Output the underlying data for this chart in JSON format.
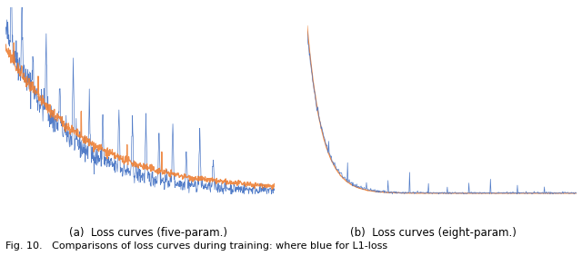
{
  "title_a": "(a)  Loss curves (five-param.)",
  "title_b": "(b)  Loss curves (eight-param.)",
  "caption": "Fig. 10.   Comparisons of loss curves during training: where blue for L1-loss",
  "blue_color": "#4472C4",
  "orange_color": "#ED7D31",
  "fig_width": 6.4,
  "fig_height": 2.82,
  "seed": 42,
  "n_steps_a": 800,
  "n_steps_b": 500,
  "background": "white"
}
